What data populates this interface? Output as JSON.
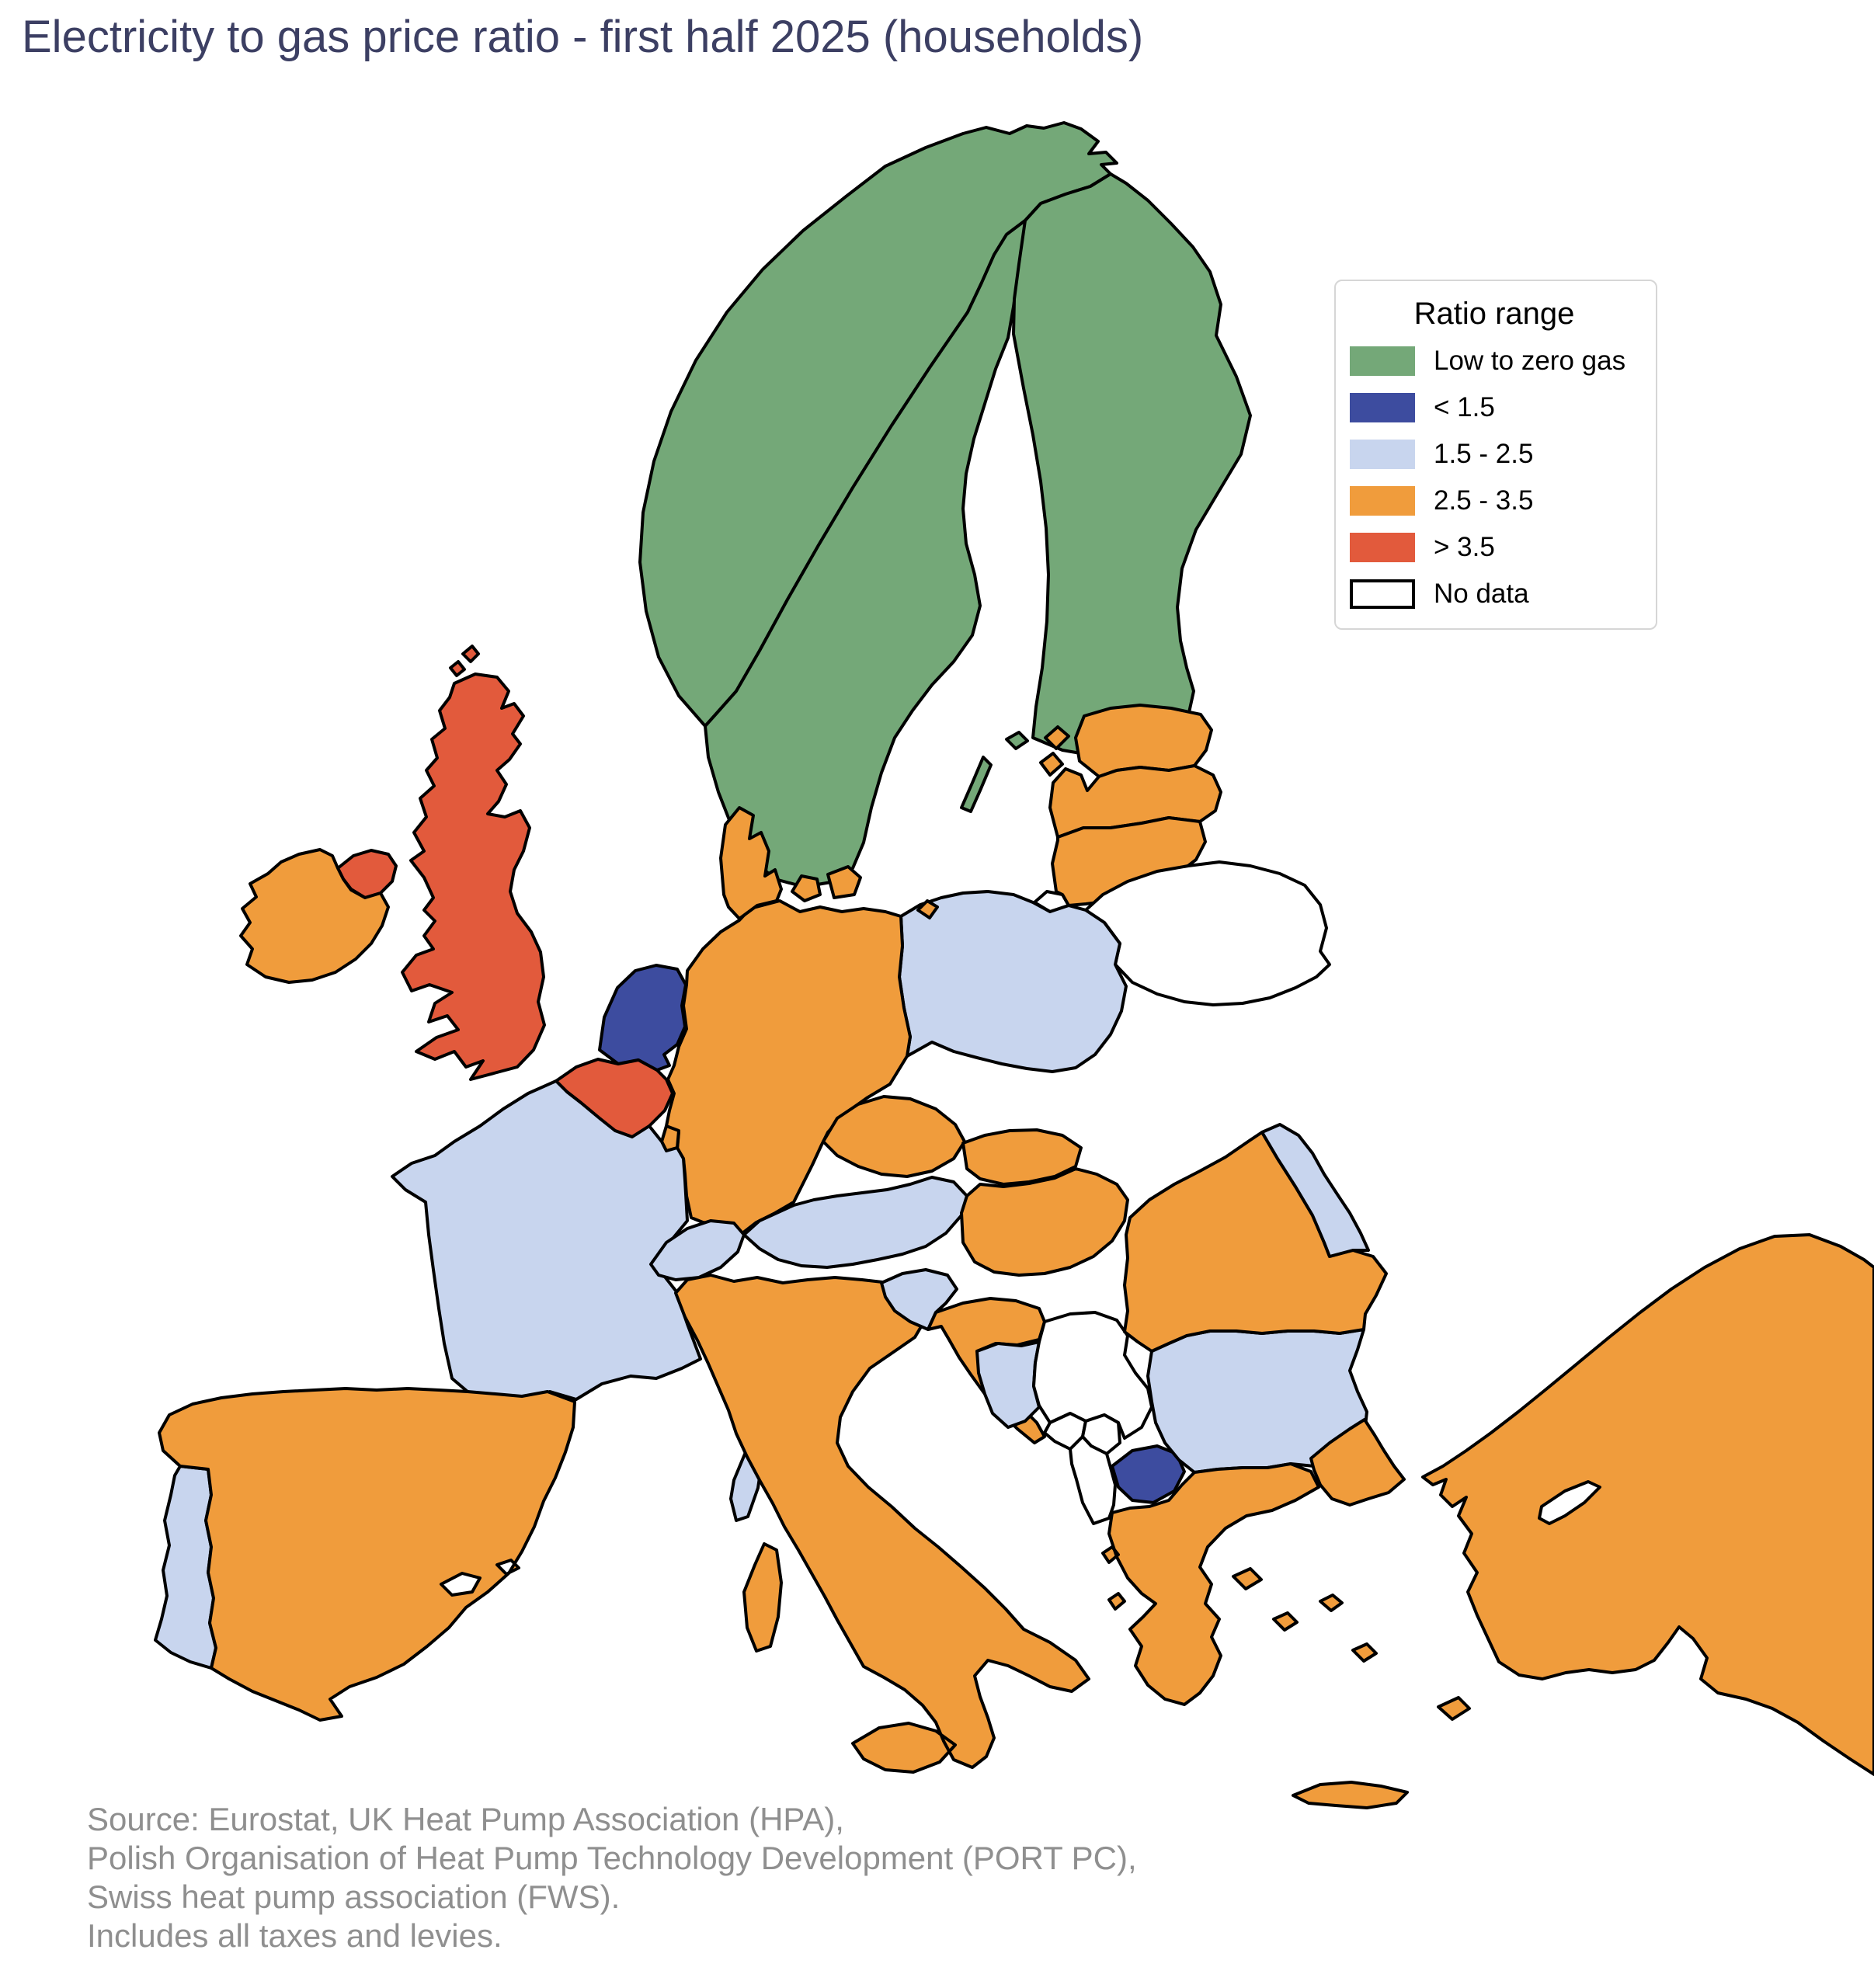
{
  "title": "Electricity to gas price ratio - first half 2025 (households)",
  "legend": {
    "title": "Ratio range",
    "items": [
      {
        "key": "low_zero_gas",
        "label": "Low to zero gas",
        "color": "#74a878",
        "outlined": false
      },
      {
        "key": "lt_1_5",
        "label": "< 1.5",
        "color": "#3d4c9f",
        "outlined": false
      },
      {
        "key": "r1_5_2_5",
        "label": "1.5 - 2.5",
        "color": "#c8d5ee",
        "outlined": false
      },
      {
        "key": "r2_5_3_5",
        "label": "2.5 - 3.5",
        "color": "#f09c3c",
        "outlined": false
      },
      {
        "key": "gt_3_5",
        "label": "> 3.5",
        "color": "#e25a3c",
        "outlined": false
      },
      {
        "key": "no_data",
        "label": "No data",
        "color": "#ffffff",
        "outlined": true
      }
    ]
  },
  "source_lines": [
    "Source: Eurostat, UK Heat Pump Association (HPA),",
    "Polish Organisation of Heat Pump Technology Development (PORT PC),",
    "Swiss heat pump association (FWS).",
    "Includes all taxes and levies."
  ],
  "map": {
    "border_color": "#000000",
    "sea_color": "#ffffff",
    "category_colors": {
      "low_zero_gas": "#74a878",
      "lt_1_5": "#3d4c9f",
      "r1_5_2_5": "#c8d5ee",
      "r2_5_3_5": "#f09c3c",
      "gt_3_5": "#e25a3c",
      "no_data": "#ffffff"
    },
    "countries": [
      {
        "id": "norway",
        "name": "Norway",
        "category": "low_zero_gas"
      },
      {
        "id": "sweden",
        "name": "Sweden",
        "category": "low_zero_gas"
      },
      {
        "id": "finland",
        "name": "Finland",
        "category": "low_zero_gas"
      },
      {
        "id": "estonia",
        "name": "Estonia",
        "category": "r2_5_3_5"
      },
      {
        "id": "latvia",
        "name": "Latvia",
        "category": "r2_5_3_5"
      },
      {
        "id": "lithuania",
        "name": "Lithuania",
        "category": "r2_5_3_5"
      },
      {
        "id": "kaliningrad",
        "name": "Kaliningrad (Russia)",
        "category": "no_data"
      },
      {
        "id": "belarus",
        "name": "Belarus",
        "category": "no_data"
      },
      {
        "id": "poland",
        "name": "Poland",
        "category": "r1_5_2_5"
      },
      {
        "id": "germany",
        "name": "Germany",
        "category": "r2_5_3_5"
      },
      {
        "id": "denmark",
        "name": "Denmark",
        "category": "r2_5_3_5"
      },
      {
        "id": "netherlands",
        "name": "Netherlands",
        "category": "lt_1_5"
      },
      {
        "id": "belgium",
        "name": "Belgium",
        "category": "gt_3_5"
      },
      {
        "id": "luxembourg",
        "name": "Luxembourg",
        "category": "r2_5_3_5"
      },
      {
        "id": "france",
        "name": "France",
        "category": "r1_5_2_5"
      },
      {
        "id": "united-kingdom",
        "name": "United Kingdom",
        "category": "gt_3_5"
      },
      {
        "id": "ireland",
        "name": "Ireland",
        "category": "r2_5_3_5"
      },
      {
        "id": "portugal",
        "name": "Portugal",
        "category": "r1_5_2_5"
      },
      {
        "id": "spain",
        "name": "Spain",
        "category": "r2_5_3_5"
      },
      {
        "id": "italy",
        "name": "Italy",
        "category": "r2_5_3_5"
      },
      {
        "id": "switzerland",
        "name": "Switzerland",
        "category": "r1_5_2_5"
      },
      {
        "id": "austria",
        "name": "Austria",
        "category": "r1_5_2_5"
      },
      {
        "id": "czechia",
        "name": "Czechia",
        "category": "r2_5_3_5"
      },
      {
        "id": "slovakia",
        "name": "Slovakia",
        "category": "r2_5_3_5"
      },
      {
        "id": "hungary",
        "name": "Hungary",
        "category": "r2_5_3_5"
      },
      {
        "id": "slovenia",
        "name": "Slovenia",
        "category": "r1_5_2_5"
      },
      {
        "id": "croatia",
        "name": "Croatia",
        "category": "r2_5_3_5"
      },
      {
        "id": "bosnia",
        "name": "Bosnia and Herzegovina",
        "category": "r1_5_2_5"
      },
      {
        "id": "serbia",
        "name": "Serbia",
        "category": "no_data"
      },
      {
        "id": "montenegro",
        "name": "Montenegro",
        "category": "no_data"
      },
      {
        "id": "kosovo",
        "name": "Kosovo",
        "category": "no_data"
      },
      {
        "id": "albania",
        "name": "Albania",
        "category": "no_data"
      },
      {
        "id": "north-macedonia",
        "name": "North Macedonia",
        "category": "lt_1_5"
      },
      {
        "id": "bulgaria",
        "name": "Bulgaria",
        "category": "r1_5_2_5"
      },
      {
        "id": "romania",
        "name": "Romania",
        "category": "r2_5_3_5"
      },
      {
        "id": "moldova",
        "name": "Moldova",
        "category": "r1_5_2_5"
      },
      {
        "id": "greece",
        "name": "Greece",
        "category": "r2_5_3_5"
      },
      {
        "id": "turkey",
        "name": "Turkey",
        "category": "r2_5_3_5"
      },
      {
        "id": "cyprus",
        "name": "Cyprus",
        "category": "no_data"
      }
    ]
  }
}
